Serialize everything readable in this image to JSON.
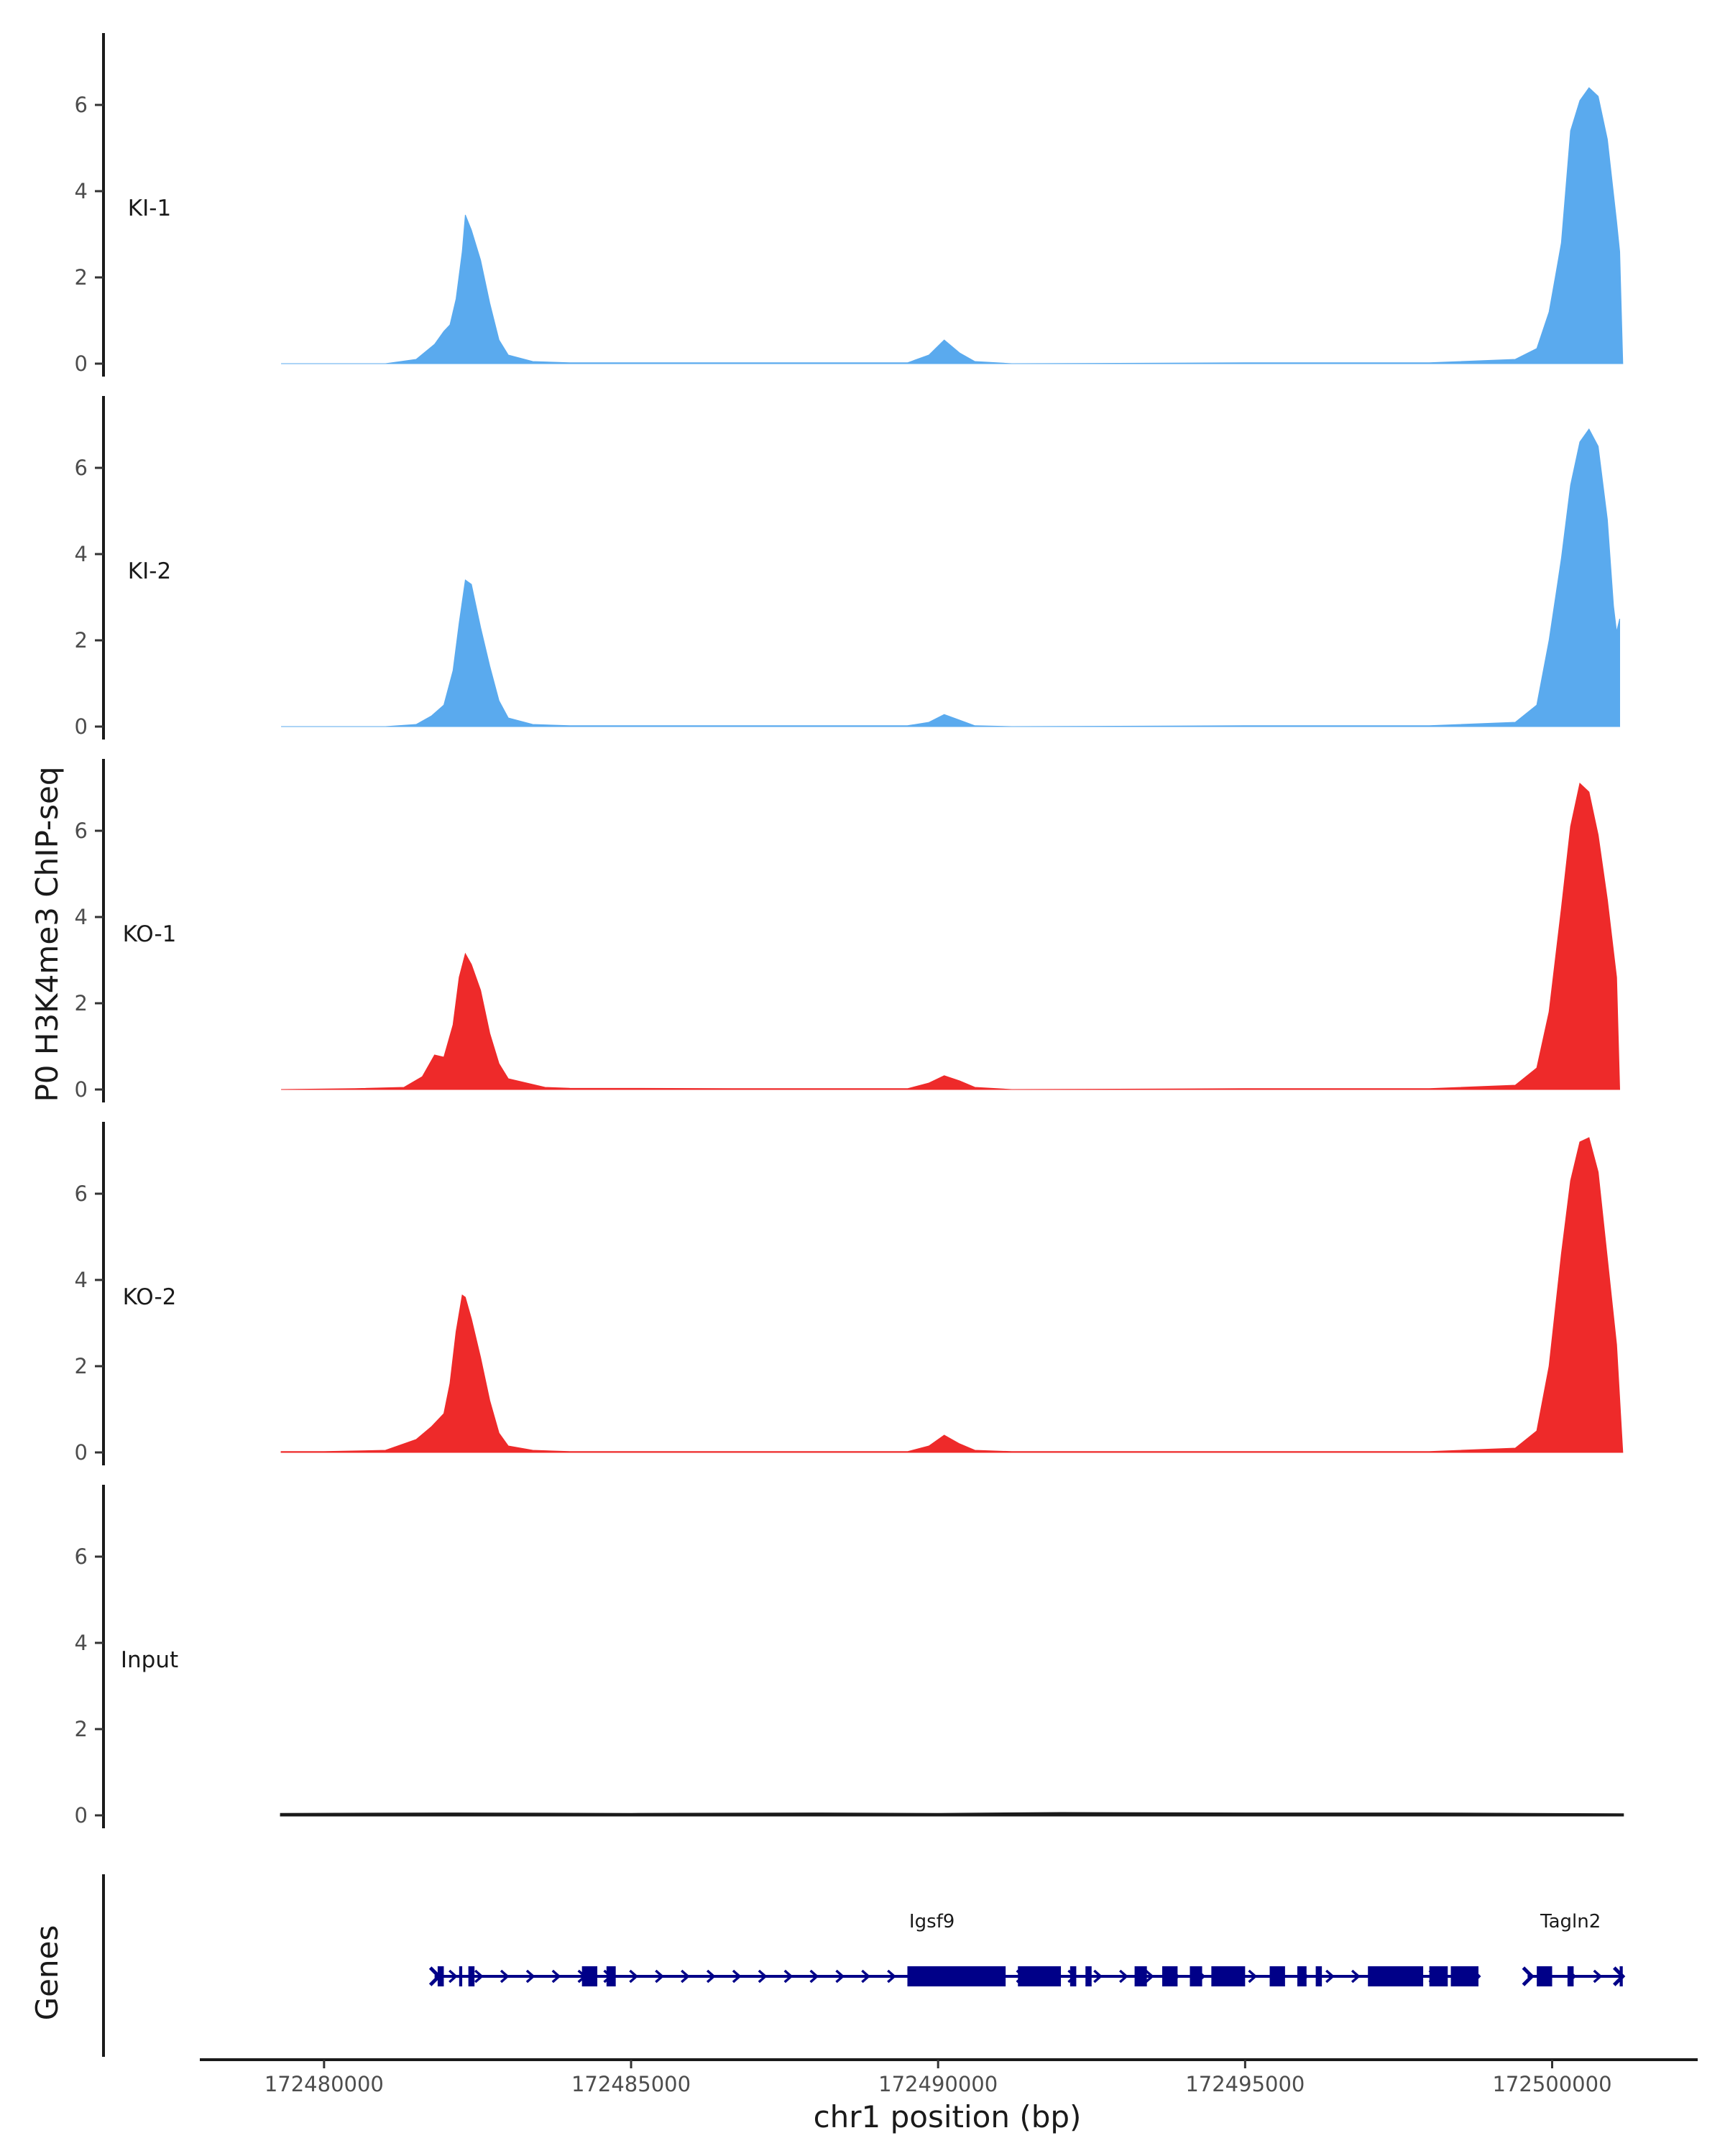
{
  "chart_data": {
    "type": "area",
    "ylabel": "P0 H3K4me3 ChIP-seq",
    "xlabel": "chr1 position (bp)",
    "genes_label": "Genes",
    "xlim": [
      172478000,
      172502300
    ],
    "ylim": [
      0,
      7.6
    ],
    "y_ticks": [
      "0",
      "2",
      "4",
      "6"
    ],
    "x_ticks": [
      {
        "value": 172480000,
        "label": "172480000"
      },
      {
        "value": 172485000,
        "label": "172485000"
      },
      {
        "value": 172490000,
        "label": "172490000"
      },
      {
        "value": 172495000,
        "label": "172495000"
      },
      {
        "value": 172500000,
        "label": "172500000"
      }
    ],
    "colors": {
      "KI": "#5aaaee",
      "KO": "#ee2a2a",
      "Input": "#1a1a1a",
      "gene": "#000088"
    },
    "tracks": [
      {
        "name": "KI-1",
        "color": "#5aaaee",
        "x": [
          172479300,
          172481000,
          172481500,
          172481800,
          172481950,
          172482050,
          172482150,
          172482250,
          172482300,
          172482400,
          172482550,
          172482700,
          172482850,
          172483000,
          172483400,
          172484000,
          172487000,
          172489500,
          172489850,
          172490100,
          172490350,
          172490600,
          172491200,
          172495000,
          172498000,
          172499400,
          172499750,
          172499950,
          172500150,
          172500300,
          172500450,
          172500600,
          172500750,
          172500900,
          172501050,
          172501100,
          172501150
        ],
        "y": [
          0,
          0,
          0.1,
          0.45,
          0.75,
          0.9,
          1.5,
          2.6,
          3.45,
          3.1,
          2.4,
          1.4,
          0.55,
          0.2,
          0.05,
          0.02,
          0.02,
          0.02,
          0.2,
          0.55,
          0.25,
          0.05,
          0,
          0.02,
          0.02,
          0.1,
          0.35,
          1.2,
          2.8,
          5.4,
          6.1,
          6.4,
          6.2,
          5.2,
          3.3,
          2.6,
          0
        ]
      },
      {
        "name": "KI-2",
        "color": "#5aaaee",
        "x": [
          172479300,
          172481000,
          172481500,
          172481750,
          172481950,
          172482100,
          172482200,
          172482300,
          172482400,
          172482550,
          172482700,
          172482850,
          172483000,
          172483400,
          172484000,
          172487000,
          172489500,
          172489850,
          172490100,
          172490350,
          172490600,
          172491200,
          172495000,
          172498000,
          172499400,
          172499750,
          172499950,
          172500150,
          172500300,
          172500450,
          172500600,
          172500750,
          172500900,
          172501000,
          172501050,
          172501100
        ],
        "y": [
          0,
          0,
          0.05,
          0.25,
          0.5,
          1.3,
          2.4,
          3.4,
          3.3,
          2.3,
          1.4,
          0.6,
          0.2,
          0.05,
          0.02,
          0.02,
          0.02,
          0.1,
          0.28,
          0.15,
          0.02,
          0,
          0.02,
          0.02,
          0.1,
          0.5,
          2.0,
          3.9,
          5.6,
          6.6,
          6.9,
          6.5,
          4.8,
          2.8,
          2.2,
          2.5
        ]
      },
      {
        "name": "KO-1",
        "color": "#ee2a2a",
        "x": [
          172479300,
          172480500,
          172481300,
          172481600,
          172481800,
          172481950,
          172482100,
          172482200,
          172482300,
          172482400,
          172482550,
          172482700,
          172482850,
          172483000,
          172483300,
          172483600,
          172484000,
          172487000,
          172489500,
          172489850,
          172490100,
          172490350,
          172490600,
          172491200,
          172495000,
          172498000,
          172499400,
          172499750,
          172499950,
          172500150,
          172500300,
          172500450,
          172500600,
          172500750,
          172500900,
          172501050,
          172501100
        ],
        "y": [
          0,
          0.02,
          0.05,
          0.3,
          0.8,
          0.75,
          1.5,
          2.6,
          3.15,
          2.9,
          2.3,
          1.3,
          0.6,
          0.25,
          0.15,
          0.05,
          0.03,
          0.02,
          0.02,
          0.15,
          0.32,
          0.2,
          0.05,
          0,
          0.02,
          0.02,
          0.1,
          0.5,
          1.8,
          4.2,
          6.1,
          7.1,
          6.9,
          5.9,
          4.4,
          2.6,
          0
        ]
      },
      {
        "name": "KO-2",
        "color": "#ee2a2a",
        "x": [
          172479300,
          172480000,
          172481000,
          172481500,
          172481750,
          172481950,
          172482050,
          172482150,
          172482250,
          172482300,
          172482400,
          172482550,
          172482700,
          172482850,
          172483000,
          172483400,
          172484000,
          172487000,
          172489500,
          172489850,
          172490100,
          172490350,
          172490600,
          172491200,
          172495000,
          172498000,
          172499400,
          172499750,
          172499950,
          172500150,
          172500300,
          172500450,
          172500600,
          172500750,
          172500900,
          172501050,
          172501150
        ],
        "y": [
          0.02,
          0.02,
          0.05,
          0.3,
          0.6,
          0.9,
          1.6,
          2.8,
          3.65,
          3.6,
          3.1,
          2.2,
          1.2,
          0.45,
          0.15,
          0.05,
          0.02,
          0.02,
          0.02,
          0.15,
          0.4,
          0.2,
          0.05,
          0.02,
          0.02,
          0.02,
          0.1,
          0.5,
          2.0,
          4.6,
          6.3,
          7.2,
          7.3,
          6.5,
          4.5,
          2.5,
          0
        ]
      },
      {
        "name": "Input",
        "color": "#1a1a1a",
        "x": [
          172479300,
          172482000,
          172485000,
          172488000,
          172490000,
          172492000,
          172495000,
          172498000,
          172501150
        ],
        "y": [
          0.03,
          0.04,
          0.03,
          0.04,
          0.03,
          0.05,
          0.04,
          0.04,
          0.02
        ]
      }
    ],
    "genes": [
      {
        "name": "Igsf9",
        "start": 172481800,
        "end": 172498800,
        "exons": [
          [
            172481850,
            172481950
          ],
          [
            172482200,
            172482250
          ],
          [
            172482350,
            172482450
          ],
          [
            172484200,
            172484450
          ],
          [
            172484600,
            172484750
          ],
          [
            172489500,
            172491100
          ],
          [
            172491300,
            172492000
          ],
          [
            172492150,
            172492250
          ],
          [
            172492400,
            172492500
          ],
          [
            172493200,
            172493400
          ],
          [
            172493650,
            172493900
          ],
          [
            172494100,
            172494300
          ],
          [
            172494450,
            172495000
          ],
          [
            172495400,
            172495650
          ],
          [
            172495850,
            172496000
          ],
          [
            172496150,
            172496250
          ],
          [
            172497000,
            172497900
          ],
          [
            172498000,
            172498300
          ],
          [
            172498350,
            172498800
          ]
        ]
      },
      {
        "name": "Tagln2",
        "start": 172499600,
        "end": 172501150,
        "exons": [
          [
            172499750,
            172500000
          ],
          [
            172500250,
            172500350
          ],
          [
            172501100,
            172501150
          ]
        ]
      }
    ]
  }
}
